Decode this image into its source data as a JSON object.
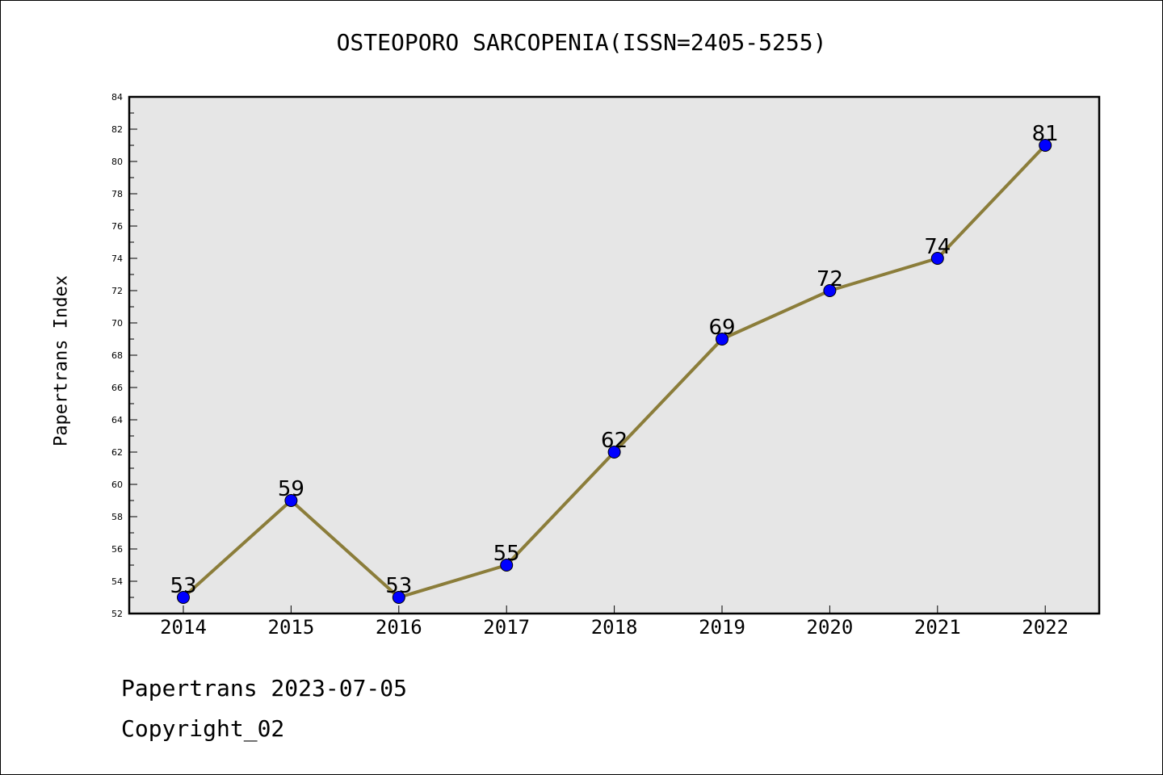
{
  "title": "OSTEOPORO SARCOPENIA(ISSN=2405-5255)",
  "footer": {
    "line1": "Papertrans 2023-07-05",
    "line2": "Copyright_02"
  },
  "colors": {
    "line": "#8b7d3a",
    "marker": "#0000ff",
    "plot_bg": "#e6e6e6"
  },
  "chart_data": {
    "type": "line",
    "title": "OSTEOPORO SARCOPENIA(ISSN=2405-5255)",
    "xlabel": "",
    "ylabel": "Papertrans Index",
    "categories": [
      "2014",
      "2015",
      "2016",
      "2017",
      "2018",
      "2019",
      "2020",
      "2021",
      "2022"
    ],
    "series": [
      {
        "values": [
          53,
          59,
          53,
          55,
          62,
          69,
          72,
          74,
          81
        ]
      }
    ],
    "ylim": [
      52,
      84
    ],
    "yticks": [
      52,
      54,
      56,
      58,
      60,
      62,
      64,
      66,
      68,
      70,
      72,
      74,
      76,
      78,
      80,
      82,
      84
    ],
    "data_labels": true,
    "grid": false,
    "legend": "none"
  }
}
